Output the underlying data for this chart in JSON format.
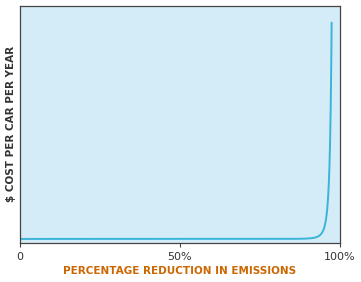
{
  "title": "",
  "xlabel": "PERCENTAGE REDUCTION IN EMISSIONS",
  "ylabel": "$ COST PER CAR PER YEAR",
  "xlabel_color": "#cc6600",
  "ylabel_color": "#333333",
  "background_color": "#d4ecf7",
  "line_color": "#3ab4d8",
  "xlim": [
    0,
    100
  ],
  "xtick_labels": [
    "0",
    "50%",
    "100%"
  ],
  "xtick_positions": [
    0,
    50,
    100
  ],
  "figsize": [
    3.61,
    2.82
  ],
  "dpi": 100,
  "spine_color": "#444444",
  "xlabel_fontsize": 7.5,
  "ylabel_fontsize": 7.5,
  "tick_fontsize": 8,
  "curve_power": 4.5
}
